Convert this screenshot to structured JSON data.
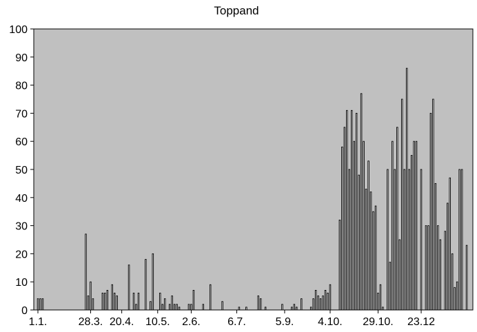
{
  "chart_data": {
    "type": "bar",
    "title": "Toppand",
    "xlabel": "",
    "ylabel": "",
    "ylim": [
      0,
      100
    ],
    "yticks": [
      0,
      10,
      20,
      30,
      40,
      50,
      60,
      70,
      80,
      90,
      100
    ],
    "x_tick_labels": [
      "1.1.",
      "28.3.",
      "20.4.",
      "10.5.",
      "2.6.",
      "6.7.",
      "5.9.",
      "4.10.",
      "29.10.",
      "23.12"
    ],
    "x_tick_categories": [
      0,
      22,
      35,
      50,
      64,
      83,
      103,
      122,
      142,
      160
    ],
    "grid": false,
    "legend": "none",
    "colors": {
      "plot_background": "#c0c0c0",
      "bar_fill": "#ffffff",
      "bar_stroke": "#000000"
    },
    "bars": [
      {
        "x": 0,
        "y": 4
      },
      {
        "x": 1,
        "y": 4
      },
      {
        "x": 2,
        "y": 4
      },
      {
        "x": 20,
        "y": 27
      },
      {
        "x": 21,
        "y": 5
      },
      {
        "x": 22,
        "y": 10
      },
      {
        "x": 23,
        "y": 4
      },
      {
        "x": 27,
        "y": 6
      },
      {
        "x": 28,
        "y": 6
      },
      {
        "x": 29,
        "y": 7
      },
      {
        "x": 31,
        "y": 9
      },
      {
        "x": 32,
        "y": 6
      },
      {
        "x": 33,
        "y": 5
      },
      {
        "x": 38,
        "y": 16
      },
      {
        "x": 40,
        "y": 6
      },
      {
        "x": 41,
        "y": 2
      },
      {
        "x": 42,
        "y": 6
      },
      {
        "x": 45,
        "y": 18
      },
      {
        "x": 47,
        "y": 3
      },
      {
        "x": 48,
        "y": 20
      },
      {
        "x": 51,
        "y": 6
      },
      {
        "x": 52,
        "y": 2
      },
      {
        "x": 53,
        "y": 4
      },
      {
        "x": 55,
        "y": 2
      },
      {
        "x": 56,
        "y": 5
      },
      {
        "x": 57,
        "y": 2
      },
      {
        "x": 58,
        "y": 2
      },
      {
        "x": 59,
        "y": 1
      },
      {
        "x": 63,
        "y": 2
      },
      {
        "x": 64,
        "y": 2
      },
      {
        "x": 65,
        "y": 7
      },
      {
        "x": 69,
        "y": 2
      },
      {
        "x": 72,
        "y": 9
      },
      {
        "x": 77,
        "y": 3
      },
      {
        "x": 84,
        "y": 1
      },
      {
        "x": 87,
        "y": 1
      },
      {
        "x": 92,
        "y": 5
      },
      {
        "x": 93,
        "y": 4
      },
      {
        "x": 95,
        "y": 1
      },
      {
        "x": 102,
        "y": 2
      },
      {
        "x": 106,
        "y": 1
      },
      {
        "x": 107,
        "y": 2
      },
      {
        "x": 108,
        "y": 1
      },
      {
        "x": 110,
        "y": 4
      },
      {
        "x": 114,
        "y": 1
      },
      {
        "x": 115,
        "y": 4
      },
      {
        "x": 116,
        "y": 7
      },
      {
        "x": 117,
        "y": 5
      },
      {
        "x": 118,
        "y": 4
      },
      {
        "x": 119,
        "y": 5
      },
      {
        "x": 120,
        "y": 7
      },
      {
        "x": 121,
        "y": 6
      },
      {
        "x": 122,
        "y": 9
      },
      {
        "x": 126,
        "y": 32
      },
      {
        "x": 127,
        "y": 58
      },
      {
        "x": 128,
        "y": 65
      },
      {
        "x": 129,
        "y": 71
      },
      {
        "x": 130,
        "y": 50
      },
      {
        "x": 131,
        "y": 71
      },
      {
        "x": 132,
        "y": 60
      },
      {
        "x": 133,
        "y": 70
      },
      {
        "x": 134,
        "y": 48
      },
      {
        "x": 135,
        "y": 77
      },
      {
        "x": 136,
        "y": 60
      },
      {
        "x": 137,
        "y": 43
      },
      {
        "x": 138,
        "y": 53
      },
      {
        "x": 139,
        "y": 42
      },
      {
        "x": 140,
        "y": 35
      },
      {
        "x": 141,
        "y": 37
      },
      {
        "x": 142,
        "y": 6
      },
      {
        "x": 143,
        "y": 9
      },
      {
        "x": 144,
        "y": 1
      },
      {
        "x": 146,
        "y": 50
      },
      {
        "x": 147,
        "y": 17
      },
      {
        "x": 148,
        "y": 60
      },
      {
        "x": 149,
        "y": 50
      },
      {
        "x": 150,
        "y": 65
      },
      {
        "x": 151,
        "y": 25
      },
      {
        "x": 152,
        "y": 75
      },
      {
        "x": 153,
        "y": 50
      },
      {
        "x": 154,
        "y": 86
      },
      {
        "x": 155,
        "y": 50
      },
      {
        "x": 156,
        "y": 55
      },
      {
        "x": 157,
        "y": 60
      },
      {
        "x": 158,
        "y": 60
      },
      {
        "x": 160,
        "y": 50
      },
      {
        "x": 162,
        "y": 30
      },
      {
        "x": 163,
        "y": 30
      },
      {
        "x": 164,
        "y": 70
      },
      {
        "x": 165,
        "y": 75
      },
      {
        "x": 166,
        "y": 45
      },
      {
        "x": 167,
        "y": 30
      },
      {
        "x": 168,
        "y": 25
      },
      {
        "x": 170,
        "y": 28
      },
      {
        "x": 171,
        "y": 38
      },
      {
        "x": 172,
        "y": 47
      },
      {
        "x": 173,
        "y": 20
      },
      {
        "x": 174,
        "y": 8
      },
      {
        "x": 175,
        "y": 10
      },
      {
        "x": 176,
        "y": 50
      },
      {
        "x": 177,
        "y": 50
      },
      {
        "x": 179,
        "y": 23
      }
    ]
  }
}
